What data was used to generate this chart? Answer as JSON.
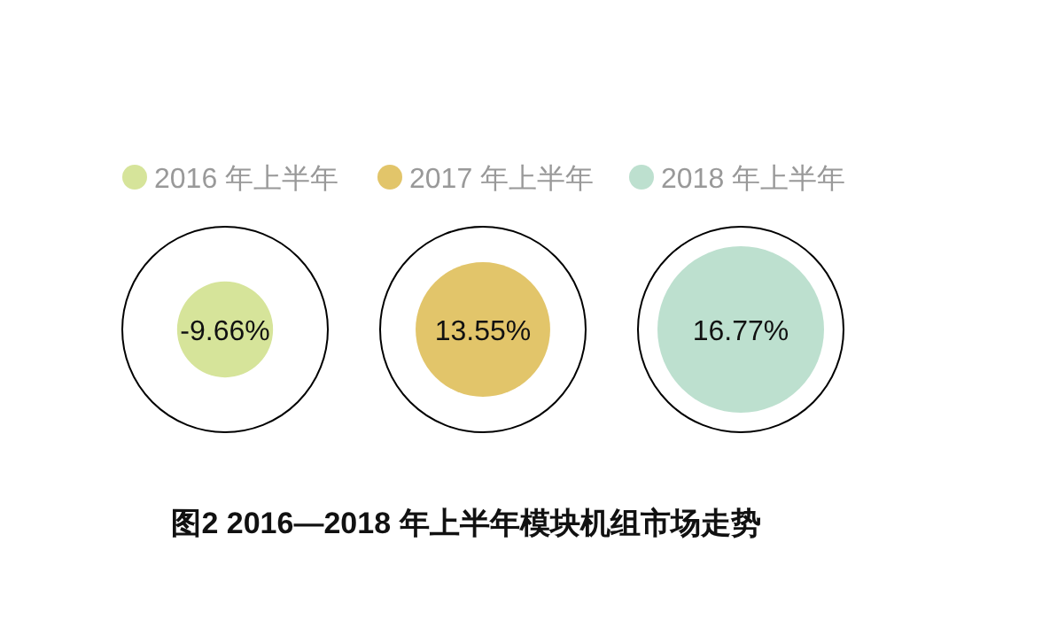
{
  "chart_data": {
    "type": "other",
    "title": "图2  2016—2018 年上半年模块机组市场走势",
    "categories": [
      "2016 年上半年",
      "2017 年上半年",
      "2018 年上半年"
    ],
    "values": [
      -9.66,
      13.55,
      16.77
    ],
    "value_labels": [
      "-9.66%",
      "13.55%",
      "16.77%"
    ],
    "colors": [
      "#d6e49a",
      "#e2c56a",
      "#bde0cf"
    ]
  }
}
